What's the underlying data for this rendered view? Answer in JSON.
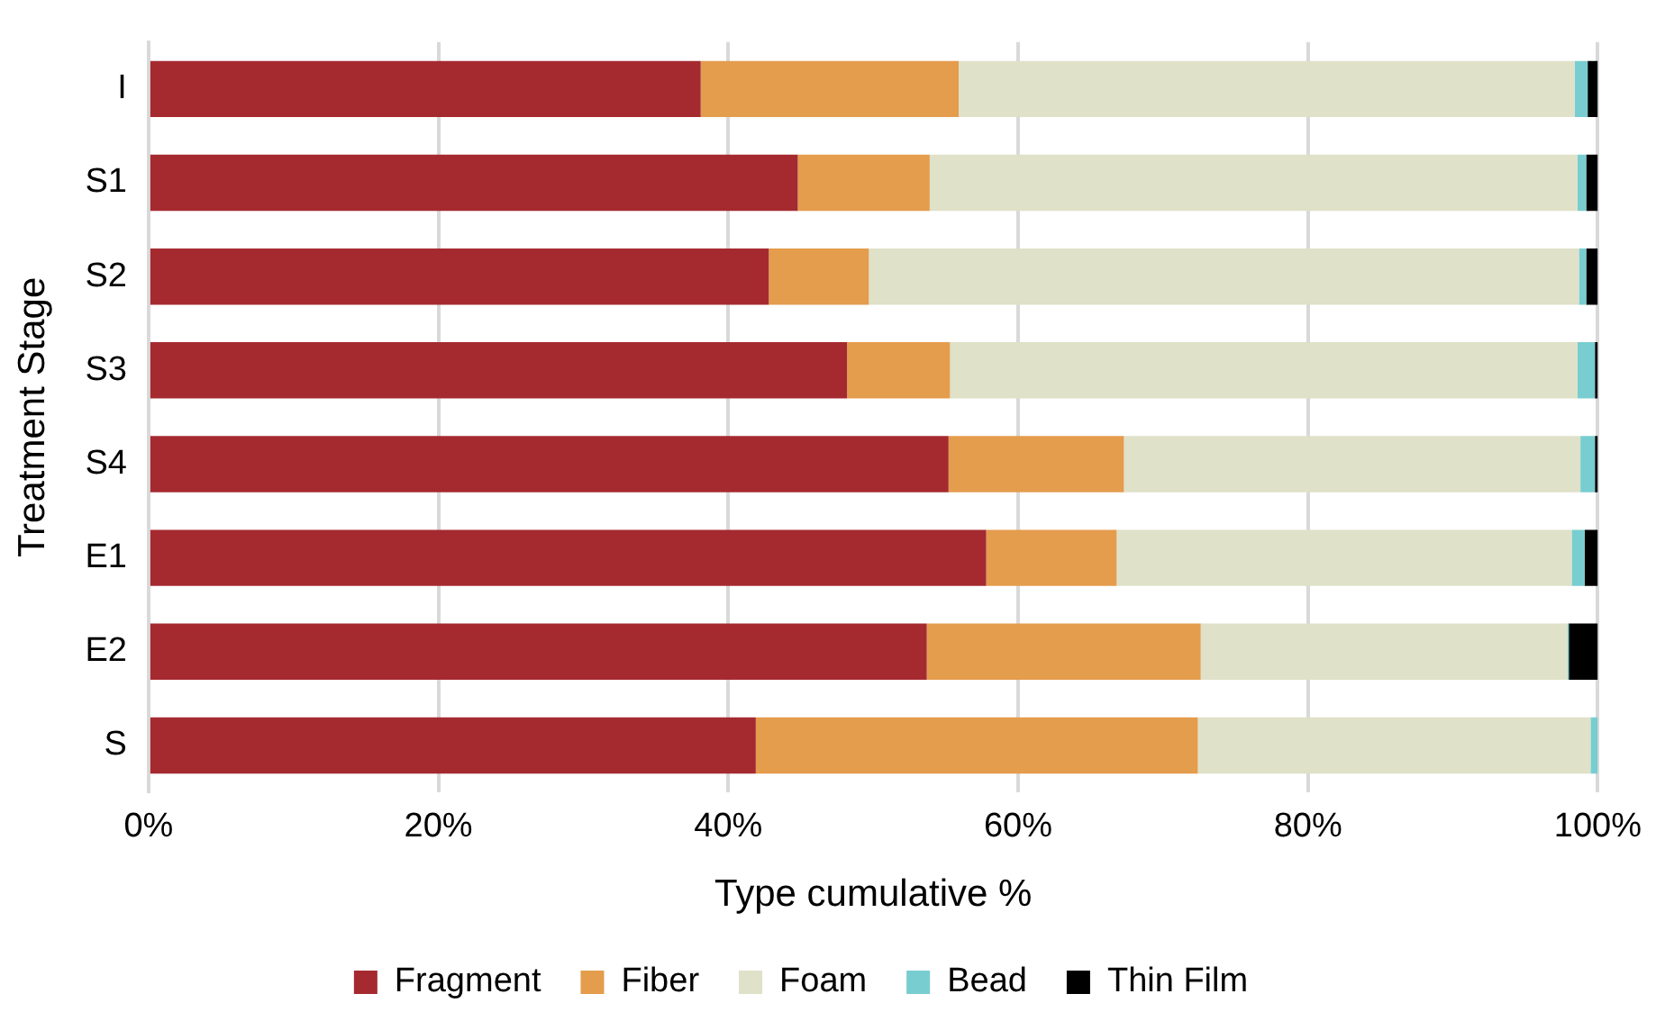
{
  "chart_data": {
    "type": "bar",
    "orientation": "horizontal",
    "stacked": true,
    "categories": [
      "I",
      "S1",
      "S2",
      "S3",
      "S4",
      "E1",
      "E2",
      "S"
    ],
    "series": [
      {
        "name": "Fragment",
        "color": "#a52a30",
        "values": [
          38.1,
          44.8,
          42.8,
          48.2,
          55.2,
          57.8,
          53.7,
          41.9
        ]
      },
      {
        "name": "Fiber",
        "color": "#e49c4d",
        "values": [
          17.8,
          9.1,
          6.9,
          7.1,
          12.1,
          9.0,
          18.9,
          30.5
        ]
      },
      {
        "name": "Foam",
        "color": "#dfe1c8",
        "values": [
          42.5,
          44.7,
          49.0,
          43.3,
          31.5,
          31.4,
          25.3,
          27.1
        ]
      },
      {
        "name": "Bead",
        "color": "#78cdd0",
        "values": [
          0.9,
          0.6,
          0.5,
          1.2,
          1.0,
          0.9,
          0.1,
          0.5
        ]
      },
      {
        "name": "Thin Film",
        "color": "#000000",
        "values": [
          0.7,
          0.8,
          0.8,
          0.2,
          0.2,
          0.9,
          2.0,
          0
        ]
      }
    ],
    "xlabel": "Type cumulative %",
    "ylabel": "Treatment Stage",
    "xlim": [
      0,
      100
    ],
    "xticks": [
      {
        "value": 0,
        "label": "0%"
      },
      {
        "value": 20,
        "label": "20%"
      },
      {
        "value": 40,
        "label": "40%"
      },
      {
        "value": 60,
        "label": "60%"
      },
      {
        "value": 80,
        "label": "80%"
      },
      {
        "value": 100,
        "label": "100%"
      }
    ],
    "grid": "x",
    "legend": "bottom"
  }
}
